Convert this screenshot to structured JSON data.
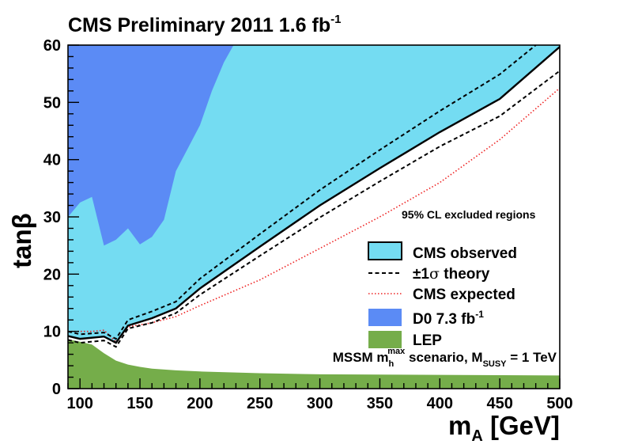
{
  "chart_data": {
    "type": "area",
    "title": {
      "main": "CMS Preliminary 2011 1.6 fb",
      "sup": "-1"
    },
    "xlabel": {
      "main": "m",
      "sub": "A",
      "rest": " [GeV]"
    },
    "ylabel": "tanβ",
    "xlim": [
      90,
      500
    ],
    "ylim": [
      0,
      60
    ],
    "x_ticks": [
      100,
      150,
      200,
      250,
      300,
      350,
      400,
      450,
      500
    ],
    "y_ticks": [
      0,
      10,
      20,
      30,
      40,
      50,
      60
    ],
    "region_label": "95% CL excluded regions",
    "scenario": {
      "prefix": "MSSM m",
      "h_sub": "h",
      "max_sup": "max",
      "middle": " scenario, M",
      "susy_sub": "SUSY",
      "suffix": " = 1 TeV"
    },
    "legend": [
      {
        "key": "observed",
        "label": "CMS observed",
        "style": "fill",
        "color": "#74dcf2",
        "border": "#000000"
      },
      {
        "key": "theory",
        "label_pre": "±1",
        "label_sigma": "σ",
        "label_post": " theory",
        "style": "dash",
        "color": "#000000"
      },
      {
        "key": "expected",
        "label": "CMS expected",
        "style": "dot",
        "color": "#ee2222"
      },
      {
        "key": "d0",
        "label": "D0 7.3 fb",
        "label_sup": "-1",
        "style": "fill",
        "color": "#5b8bf5"
      },
      {
        "key": "lep",
        "label": "LEP",
        "style": "fill",
        "color": "#75ad4a"
      }
    ],
    "series": [
      {
        "name": "CMS observed",
        "color": "#74dcf2",
        "x": [
          90,
          100,
          120,
          130,
          140,
          160,
          180,
          200,
          250,
          300,
          350,
          400,
          450,
          500
        ],
        "y": [
          9.2,
          8.7,
          9.1,
          8.0,
          11.0,
          12.3,
          14.0,
          17.5,
          24.8,
          32.0,
          38.5,
          44.8,
          50.6,
          59.7
        ]
      },
      {
        "name": "+1σ theory",
        "color": "#000000",
        "x": [
          90,
          100,
          120,
          130,
          140,
          160,
          180,
          200,
          250,
          300,
          350,
          400,
          450,
          480
        ],
        "y": [
          10.0,
          9.5,
          9.8,
          8.7,
          12.0,
          13.5,
          15.2,
          19.2,
          27.0,
          34.7,
          41.7,
          48.5,
          54.9,
          60.0
        ]
      },
      {
        "name": "-1σ theory",
        "color": "#000000",
        "x": [
          90,
          100,
          120,
          130,
          140,
          160,
          180,
          200,
          250,
          300,
          350,
          400,
          450,
          500
        ],
        "y": [
          8.5,
          8.0,
          8.4,
          7.3,
          10.5,
          11.5,
          13.2,
          16.4,
          23.2,
          29.9,
          36.2,
          42.3,
          47.6,
          55.5
        ]
      },
      {
        "name": "CMS expected",
        "color": "#ee2222",
        "x": [
          90,
          100,
          110,
          120,
          130,
          140,
          160,
          180,
          200,
          250,
          300,
          350,
          400,
          450,
          500
        ],
        "y": [
          10.0,
          10.0,
          10.0,
          10.2,
          8.2,
          10.8,
          11.5,
          12.6,
          14.5,
          19.0,
          24.5,
          30.0,
          36.0,
          43.5,
          52.5
        ]
      },
      {
        "name": "D0 7.3 fb-1",
        "color": "#5b8bf5",
        "x": [
          90,
          100,
          110,
          120,
          130,
          140,
          150,
          160,
          170,
          180,
          190,
          200,
          210,
          220,
          228
        ],
        "y": [
          30.0,
          32.5,
          33.5,
          25.0,
          26.0,
          28.0,
          25.2,
          26.5,
          29.5,
          38.0,
          42.0,
          46.0,
          52.0,
          57.0,
          60.0
        ]
      },
      {
        "name": "LEP",
        "color": "#75ad4a",
        "x": [
          90,
          100,
          110,
          120,
          130,
          140,
          150,
          160,
          180,
          200,
          250,
          300,
          350,
          400,
          450,
          500
        ],
        "y": [
          8.6,
          8.2,
          7.7,
          6.2,
          4.9,
          4.2,
          3.8,
          3.5,
          3.2,
          3.0,
          2.7,
          2.5,
          2.45,
          2.4,
          2.35,
          2.3
        ]
      }
    ]
  }
}
